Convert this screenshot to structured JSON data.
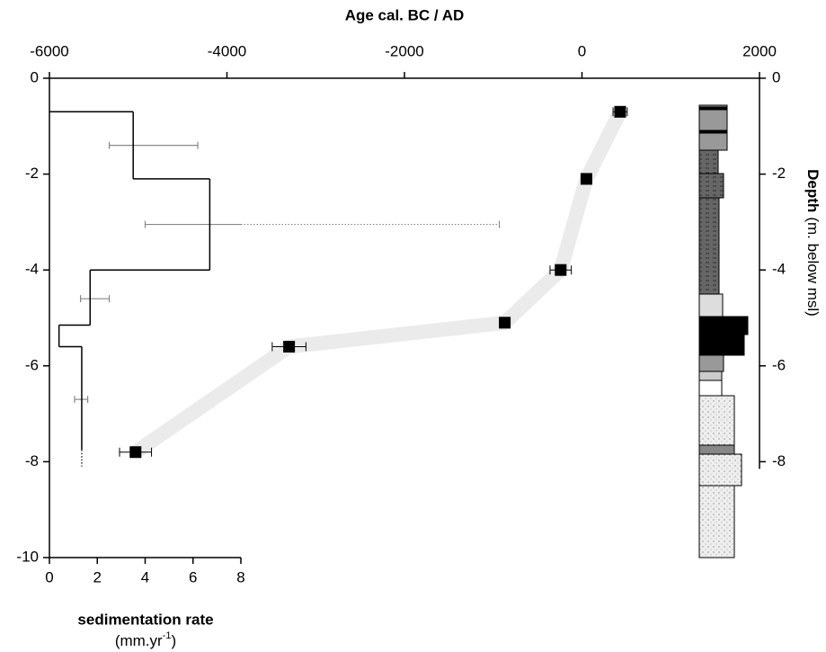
{
  "chart_data": {
    "type": "age-depth",
    "title": "Age cal. BC / AD",
    "xlim": [
      -6000,
      2000
    ],
    "xticks": [
      -6000,
      -4000,
      -2000,
      0,
      2000
    ],
    "ylim": [
      0,
      -10
    ],
    "yticks": [
      0,
      -2,
      -4,
      -6,
      -8,
      -10
    ],
    "y2ticks": [
      0,
      -2,
      -4,
      -6,
      -8
    ],
    "y2_label": {
      "bold": "Depth",
      "rest": "(m. below msl)"
    },
    "color": "#000000",
    "band_color": "#ebebeb",
    "x": [
      430,
      50,
      -240,
      -870,
      -3300,
      -5030
    ],
    "values": [
      -0.7,
      -2.1,
      -4.0,
      -5.1,
      -5.6,
      -7.8
    ],
    "errors": [
      80,
      40,
      120,
      null,
      190,
      180
    ],
    "rate_panel": {
      "xlabel": "sedimentation rate",
      "unit": {
        "base": "(mm.yr",
        "sup": "-1",
        "close": ")"
      },
      "xlim": [
        0,
        8
      ],
      "xticks": [
        0,
        2,
        4,
        6,
        8
      ],
      "depth_edges": [
        -0.7,
        -2.1,
        -4.0,
        -5.15,
        -5.6,
        -7.75
      ],
      "rates": [
        3.5,
        6.7,
        1.7,
        0.4,
        1.35
      ],
      "extrapolated_to": -8.1,
      "ranges": [
        {
          "depth": -1.4,
          "low": 2.5,
          "high": 6.2
        },
        {
          "depth": -3.05,
          "low": 4.0,
          "high": 18.8
        },
        {
          "depth": -4.6,
          "low": 1.3,
          "high": 2.5
        },
        {
          "depth": -6.7,
          "low": 1.05,
          "high": 1.6
        }
      ]
    }
  }
}
